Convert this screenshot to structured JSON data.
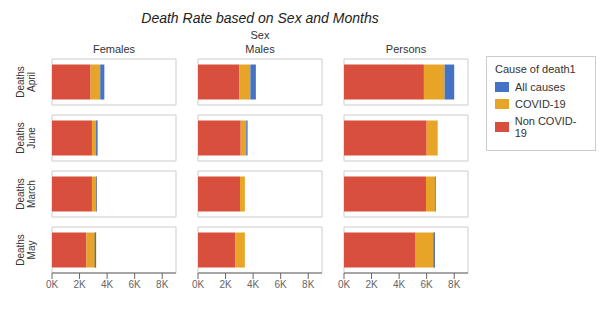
{
  "chart_data": {
    "type": "bar",
    "title": "Death Rate based on Sex and Months",
    "orientation": "horizontal",
    "stacked": true,
    "column_label": "Sex",
    "legend": "right",
    "legend_title": "Cause of death1",
    "categories": [
      "Deaths\nApril",
      "Deaths\nJune",
      "Deaths\nMarch",
      "Deaths\nMay"
    ],
    "xlim": [
      0,
      9000
    ],
    "xticks": [
      {
        "value": 0,
        "label": "0K"
      },
      {
        "value": 2000,
        "label": "2K"
      },
      {
        "value": 4000,
        "label": "4K"
      },
      {
        "value": 6000,
        "label": "6K"
      },
      {
        "value": 8000,
        "label": "8K"
      }
    ],
    "panels": [
      {
        "title": "Females",
        "series": [
          {
            "name": "Non COVID-19",
            "color": "#D94F3D",
            "values": [
              2800,
              2900,
              2900,
              2500
            ]
          },
          {
            "name": "COVID-19",
            "color": "#E8A427",
            "values": [
              700,
              400,
              350,
              700
            ]
          },
          {
            "name": "All causes",
            "color": "#4472C4",
            "values": [
              300,
              -100,
              -50,
              -100
            ]
          }
        ]
      },
      {
        "title": "Males",
        "series": [
          {
            "name": "Non COVID-19",
            "color": "#D94F3D",
            "values": [
              3000,
              3100,
              3050,
              2700
            ]
          },
          {
            "name": "COVID-19",
            "color": "#E8A427",
            "values": [
              800,
              400,
              350,
              700
            ]
          },
          {
            "name": "All causes",
            "color": "#4472C4",
            "values": [
              400,
              100,
              0,
              0
            ]
          }
        ]
      },
      {
        "title": "Persons",
        "series": [
          {
            "name": "Non COVID-19",
            "color": "#D94F3D",
            "values": [
              5800,
              6000,
              5950,
              5200
            ]
          },
          {
            "name": "COVID-19",
            "color": "#E8A427",
            "values": [
              1500,
              800,
              700,
              1400
            ]
          },
          {
            "name": "All causes",
            "color": "#4472C4",
            "values": [
              700,
              0,
              -50,
              -100
            ]
          }
        ]
      }
    ]
  }
}
